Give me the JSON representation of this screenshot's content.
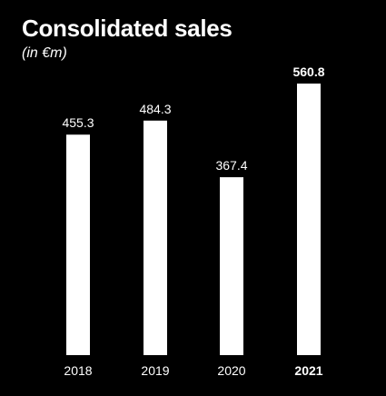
{
  "chart_data": {
    "type": "bar",
    "title": "Consolidated sales",
    "subtitle": "(in €m)",
    "categories": [
      "2018",
      "2019",
      "2020",
      "2021"
    ],
    "values": [
      455.3,
      484.3,
      367.4,
      560.8
    ],
    "value_labels": [
      "455.3",
      "484.3",
      "367.4",
      "560.8"
    ],
    "highlight_category": "2021",
    "bar_color": "#ffffff",
    "background_color": "#000000",
    "ylim": [
      0,
      600
    ],
    "grid": false
  }
}
